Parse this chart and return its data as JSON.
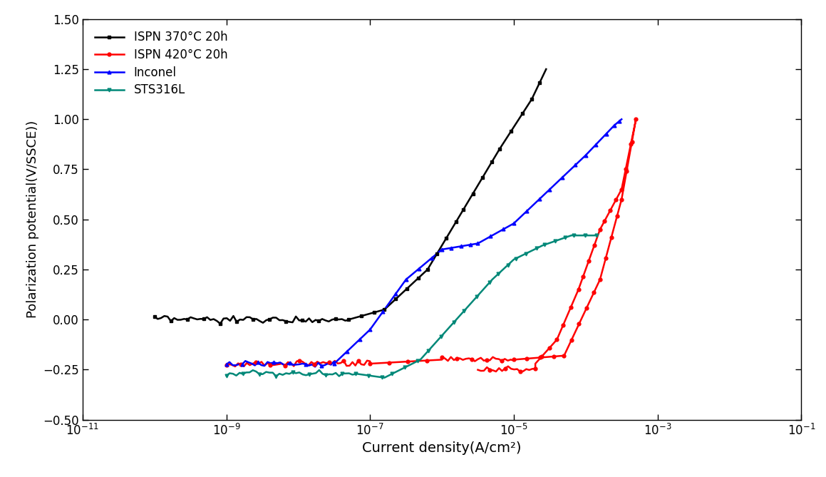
{
  "title": "",
  "xlabel": "Current density(A/cm²)",
  "ylabel": "Polarization potential(V/SSCE))",
  "xlim_log": [
    -11,
    -1
  ],
  "ylim": [
    -0.5,
    1.5
  ],
  "yticks": [
    -0.5,
    -0.25,
    0.0,
    0.25,
    0.5,
    0.75,
    1.0,
    1.25,
    1.5
  ],
  "background_color": "#ffffff",
  "series": [
    {
      "label": "ISPN 370°C 20h",
      "color": "#000000",
      "marker": "s",
      "markersize": 3.5,
      "linewidth": 1.8
    },
    {
      "label": "ISPN 420°C 20h",
      "color": "#ff0000",
      "marker": "o",
      "markersize": 3.5,
      "linewidth": 1.8
    },
    {
      "label": "Inconel",
      "color": "#0000ff",
      "marker": "^",
      "markersize": 3.5,
      "linewidth": 1.8
    },
    {
      "label": "STS316L",
      "color": "#008878",
      "marker": "v",
      "markersize": 3.5,
      "linewidth": 1.8
    }
  ]
}
